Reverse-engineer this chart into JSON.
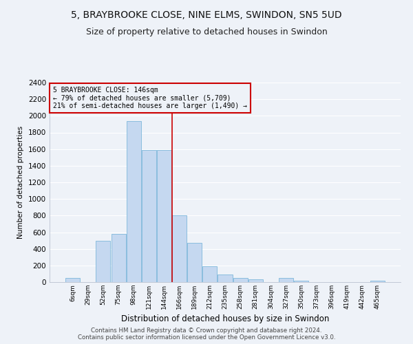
{
  "title1": "5, BRAYBROOKE CLOSE, NINE ELMS, SWINDON, SN5 5UD",
  "title2": "Size of property relative to detached houses in Swindon",
  "xlabel": "Distribution of detached houses by size in Swindon",
  "ylabel": "Number of detached properties",
  "footer1": "Contains HM Land Registry data © Crown copyright and database right 2024.",
  "footer2": "Contains public sector information licensed under the Open Government Licence v3.0.",
  "annotation_line1": "5 BRAYBROOKE CLOSE: 146sqm",
  "annotation_line2": "← 79% of detached houses are smaller (5,709)",
  "annotation_line3": "21% of semi-detached houses are larger (1,490) →",
  "bar_labels": [
    "6sqm",
    "29sqm",
    "52sqm",
    "75sqm",
    "98sqm",
    "121sqm",
    "144sqm",
    "166sqm",
    "189sqm",
    "212sqm",
    "235sqm",
    "258sqm",
    "281sqm",
    "304sqm",
    "327sqm",
    "350sqm",
    "373sqm",
    "396sqm",
    "419sqm",
    "442sqm",
    "465sqm"
  ],
  "bar_values": [
    50,
    0,
    500,
    580,
    1940,
    1590,
    1590,
    800,
    470,
    190,
    90,
    50,
    30,
    0,
    50,
    20,
    0,
    0,
    0,
    0,
    20
  ],
  "bar_color": "#c5d8f0",
  "bar_edge_color": "#6baed6",
  "vline_color": "#cc0000",
  "vline_x": 6.5,
  "ylim": [
    0,
    2400
  ],
  "yticks": [
    0,
    200,
    400,
    600,
    800,
    1000,
    1200,
    1400,
    1600,
    1800,
    2000,
    2200,
    2400
  ],
  "annotation_box_color": "#cc0000",
  "bg_color": "#eef2f8",
  "grid_color": "#dde5f0",
  "title_fontsize": 10,
  "subtitle_fontsize": 9
}
